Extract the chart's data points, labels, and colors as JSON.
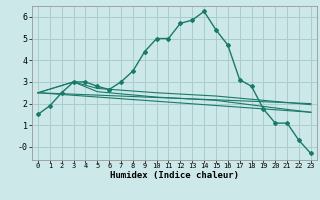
{
  "title": "",
  "xlabel": "Humidex (Indice chaleur)",
  "bg_color": "#cce8e8",
  "grid_color": "#aacccc",
  "line_color": "#1a7a6a",
  "xlim": [
    -0.5,
    23.5
  ],
  "ylim": [
    -0.6,
    6.5
  ],
  "xticks": [
    0,
    1,
    2,
    3,
    4,
    5,
    6,
    7,
    8,
    9,
    10,
    11,
    12,
    13,
    14,
    15,
    16,
    17,
    18,
    19,
    20,
    21,
    22,
    23
  ],
  "yticks": [
    0,
    1,
    2,
    3,
    4,
    5,
    6
  ],
  "ytick_labels": [
    "-0",
    "1",
    "2",
    "3",
    "4",
    "5",
    "6"
  ],
  "line1_x": [
    0,
    1,
    2,
    3,
    4,
    5,
    6,
    7,
    8,
    9,
    10,
    11,
    12,
    13,
    14,
    15,
    16,
    17,
    18,
    19,
    20,
    21,
    22,
    23
  ],
  "line1_y": [
    1.5,
    1.9,
    2.5,
    3.0,
    3.0,
    2.8,
    2.65,
    3.0,
    3.5,
    4.4,
    5.0,
    5.0,
    5.7,
    5.85,
    6.25,
    5.4,
    4.7,
    3.1,
    2.8,
    1.75,
    1.1,
    1.1,
    0.3,
    -0.3
  ],
  "line2_x": [
    0,
    23
  ],
  "line2_y": [
    2.5,
    1.6
  ],
  "line3_x": [
    0,
    23
  ],
  "line3_y": [
    2.5,
    2.0
  ],
  "line4_x": [
    0,
    3,
    5,
    10,
    15,
    20,
    23
  ],
  "line4_y": [
    2.5,
    3.0,
    2.55,
    2.3,
    2.15,
    1.8,
    1.6
  ],
  "line5_x": [
    0,
    3,
    5,
    10,
    15,
    20,
    23
  ],
  "line5_y": [
    2.5,
    3.0,
    2.7,
    2.5,
    2.35,
    2.1,
    1.95
  ]
}
